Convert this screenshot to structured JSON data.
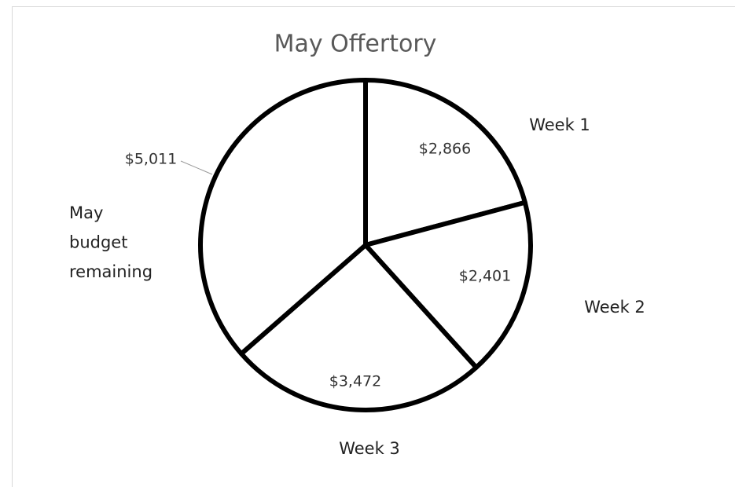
{
  "chart_data": {
    "type": "pie",
    "title": "May Offertory",
    "categories": [
      "Week 1",
      "Week 2",
      "Week 3",
      "May budget remaining"
    ],
    "values": [
      2866,
      2401,
      3472,
      5011
    ],
    "value_labels": [
      "$2,866",
      "$2,401",
      "$3,472",
      "$5,011"
    ],
    "color": "#ffffff",
    "edge_color": "#000000"
  }
}
